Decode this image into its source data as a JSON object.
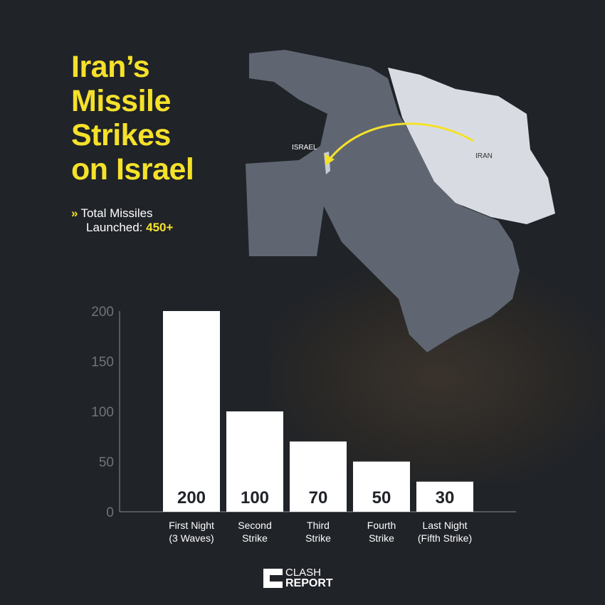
{
  "title_lines": [
    "Iran’s",
    "Missile",
    "Strikes",
    "on Israel"
  ],
  "subtitle": {
    "icon": "double-chevron-right-icon",
    "line1": "Total Missiles",
    "line2_prefix": "Launched:",
    "line2_value": "450+"
  },
  "map": {
    "labels": {
      "israel": "ISRAEL",
      "iran": "IRAN"
    }
  },
  "colors": {
    "accent": "#f5e12a",
    "background": "#202328",
    "bars": "#ffffff",
    "map_region": "#5f6672",
    "iran": "#d8dce2"
  },
  "chart_data": {
    "type": "bar",
    "title": "",
    "xlabel": "",
    "ylabel": "",
    "categories": [
      [
        "First Night",
        "(3 Waves)"
      ],
      [
        "Second",
        "Strike"
      ],
      [
        "Third",
        "Strike"
      ],
      [
        "Fourth",
        "Strike"
      ],
      [
        "Last Night",
        "(Fifth Strike)"
      ]
    ],
    "values": [
      200,
      100,
      70,
      50,
      30
    ],
    "data_labels": [
      "200",
      "100",
      "70",
      "50",
      "30"
    ],
    "ylim": [
      0,
      200
    ],
    "yticks": [
      0,
      50,
      100,
      150,
      200
    ],
    "grid": false
  },
  "logo": {
    "line1": "CLASH",
    "line2": "REPORT"
  }
}
